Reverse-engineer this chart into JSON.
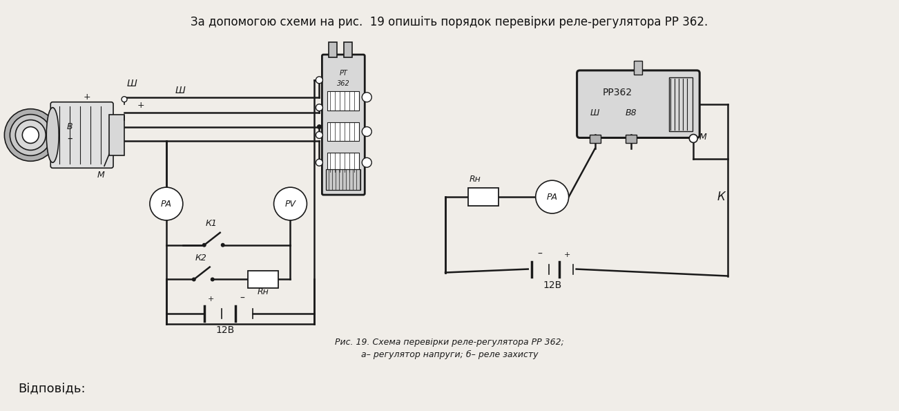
{
  "background_color": "#f0ede8",
  "title_text": "За допомогою схеми на рис.  19 опишіть порядок перевірки реле-регулятора РР 362.",
  "caption_line1": "Рис. 19. Схема перевірки реле-регулятора РР 362;",
  "caption_line2": "а– регулятор напруги; б– реле захисту",
  "footer_text": "Відповідь:",
  "fig_width": 13.02,
  "fig_height": 5.95,
  "dpi": 100
}
